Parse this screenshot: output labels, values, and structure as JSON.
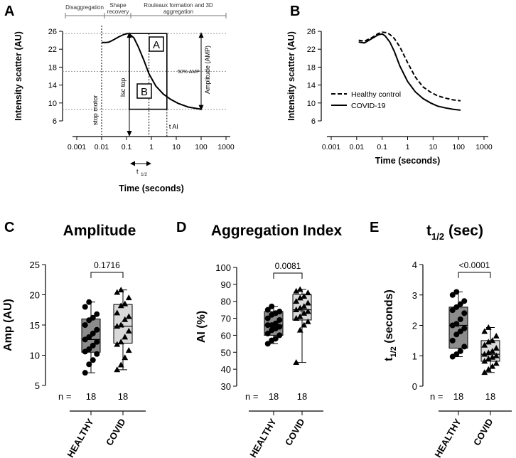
{
  "panels": {
    "A": {
      "letter": "A"
    },
    "B": {
      "letter": "B"
    },
    "C": {
      "letter": "C"
    },
    "D": {
      "letter": "D"
    },
    "E": {
      "letter": "E"
    }
  },
  "chart_data": [
    {
      "id": "A",
      "type": "line",
      "xlabel": "Time (seconds)",
      "ylabel": "Intensity scatter (AU)",
      "xscale": "log",
      "xlim": [
        0.001,
        1000
      ],
      "ylim": [
        6,
        26
      ],
      "xticks": [
        "0.001",
        "0.01",
        "0.1",
        "1",
        "10",
        "100",
        "1000"
      ],
      "yticks": [
        "6",
        "10",
        "14",
        "18",
        "22",
        "26"
      ],
      "phases": [
        "Disaggregation",
        "Shape recovery",
        "Rouleaux formation and 3D aggregation"
      ],
      "annotations": {
        "stop_motor": "stop motor",
        "isc_top": "Isc top",
        "t_ai": "t AI",
        "half_amp": "50% AMP",
        "amplitude": "Amplitude (AMP)",
        "area_a": "A",
        "area_b": "B",
        "t_half_main": "t",
        "t_half_sub": "1/2"
      },
      "series": [
        {
          "name": "curve",
          "x": [
            0.01,
            0.015,
            0.02,
            0.03,
            0.05,
            0.08,
            0.11,
            0.13,
            0.2,
            0.3,
            0.5,
            0.8,
            1.5,
            3,
            6,
            12,
            30,
            100
          ],
          "y": [
            23.5,
            23.5,
            23.6,
            24.1,
            24.8,
            25.3,
            25.5,
            25.4,
            24.5,
            22.5,
            19.5,
            16.5,
            13.8,
            12.0,
            10.8,
            9.9,
            9.1,
            8.6
          ]
        }
      ]
    },
    {
      "id": "B",
      "type": "line",
      "xlabel": "Time (seconds)",
      "ylabel": "Intensity scatter (AU)",
      "xscale": "log",
      "xlim": [
        0.001,
        1000
      ],
      "ylim": [
        6,
        26
      ],
      "xticks": [
        "0.001",
        "0.01",
        "0.1",
        "1",
        "10",
        "100",
        "1000"
      ],
      "yticks": [
        "6",
        "10",
        "14",
        "18",
        "22",
        "26"
      ],
      "legend": [
        "Healthy control",
        "COVID-19"
      ],
      "series": [
        {
          "name": "Healthy control",
          "style": "dashed",
          "x": [
            0.012,
            0.02,
            0.04,
            0.07,
            0.1,
            0.15,
            0.2,
            0.3,
            0.5,
            1,
            2,
            4,
            8,
            15,
            30,
            60,
            120
          ],
          "y": [
            24.0,
            23.8,
            24.6,
            25.5,
            25.8,
            25.7,
            25.3,
            24.4,
            22.5,
            19.0,
            15.8,
            13.6,
            12.4,
            11.6,
            11.1,
            10.7,
            10.5
          ]
        },
        {
          "name": "COVID-19",
          "style": "solid",
          "x": [
            0.012,
            0.02,
            0.04,
            0.07,
            0.1,
            0.13,
            0.2,
            0.3,
            0.5,
            1,
            2,
            4,
            8,
            15,
            30,
            60,
            120
          ],
          "y": [
            23.6,
            23.4,
            24.4,
            25.2,
            25.4,
            25.0,
            23.6,
            21.5,
            18.2,
            14.8,
            12.5,
            11.0,
            10.0,
            9.3,
            8.9,
            8.6,
            8.4
          ]
        }
      ]
    },
    {
      "id": "C",
      "type": "box",
      "title": "Amplitude",
      "ylabel": "Amp (AU)",
      "ylim": [
        5,
        25
      ],
      "yticks": [
        "5",
        "10",
        "15",
        "20",
        "25"
      ],
      "categories": [
        "HEALTHY",
        "COVID"
      ],
      "n_label": "n =",
      "n": [
        "18",
        "18"
      ],
      "p_value": "0.1716",
      "boxes": [
        {
          "min": 7.1,
          "q1": 10.5,
          "median": 12.6,
          "q3": 16.0,
          "max": 18.8,
          "mean": 13.1
        },
        {
          "min": 7.6,
          "q1": 12.0,
          "median": 14.8,
          "q3": 18.4,
          "max": 20.8,
          "mean": 14.9
        }
      ],
      "points": [
        [
          7.1,
          8.5,
          9.2,
          10.2,
          10.6,
          11.0,
          11.6,
          12.2,
          12.6,
          13.0,
          13.6,
          14.2,
          15.0,
          15.8,
          16.2,
          16.8,
          18.0,
          18.8
        ],
        [
          7.6,
          8.4,
          9.6,
          10.8,
          11.8,
          12.2,
          13.0,
          14.0,
          14.8,
          15.0,
          15.9,
          16.4,
          17.0,
          18.2,
          18.5,
          19.5,
          20.4,
          20.8
        ]
      ]
    },
    {
      "id": "D",
      "type": "box",
      "title": "Aggregation Index",
      "ylabel": "AI (%)",
      "ylim": [
        30,
        100
      ],
      "yticks": [
        "30",
        "40",
        "50",
        "60",
        "70",
        "80",
        "90",
        "100"
      ],
      "categories": [
        "HEALTHY",
        "COVID"
      ],
      "n_label": "n =",
      "n": [
        "18",
        "18"
      ],
      "p_value": "0.0081",
      "boxes": [
        {
          "min": 55,
          "q1": 60,
          "median": 66,
          "q3": 74,
          "max": 77,
          "mean": 66.5
        },
        {
          "min": 44,
          "q1": 69,
          "median": 75,
          "q3": 84,
          "max": 87,
          "mean": 74.0
        }
      ],
      "points": [
        [
          55,
          57,
          58,
          60,
          61,
          63,
          64,
          65,
          66,
          66,
          67,
          69,
          70,
          72,
          73,
          74,
          75,
          77
        ],
        [
          44,
          63,
          66,
          68,
          70,
          71,
          73,
          74,
          75,
          76,
          77,
          79,
          80,
          82,
          83,
          85,
          86,
          87
        ]
      ]
    },
    {
      "id": "E",
      "type": "box",
      "title": "t",
      "title_sub": "1/2",
      "title_suffix": " (sec)",
      "ylabel": "t",
      "ylabel_sub": "1/2",
      "ylabel_suffix": " (seconds)",
      "ylim": [
        0,
        4
      ],
      "yticks": [
        "0",
        "1",
        "2",
        "3",
        "4"
      ],
      "categories": [
        "HEALTHY",
        "COVID"
      ],
      "n_label": "n =",
      "n": [
        "18",
        "18"
      ],
      "p_value": "<0.0001",
      "boxes": [
        {
          "min": 0.97,
          "q1": 1.25,
          "median": 2.0,
          "q3": 2.6,
          "max": 3.1,
          "mean": 2.0
        },
        {
          "min": 0.45,
          "q1": 0.82,
          "median": 1.05,
          "q3": 1.5,
          "max": 1.93,
          "mean": 1.1
        }
      ],
      "points": [
        [
          0.97,
          1.05,
          1.15,
          1.3,
          1.5,
          1.7,
          1.8,
          1.9,
          2.0,
          2.05,
          2.2,
          2.4,
          2.5,
          2.6,
          2.7,
          2.8,
          3.0,
          3.1
        ],
        [
          0.45,
          0.55,
          0.65,
          0.75,
          0.82,
          0.9,
          0.95,
          1.0,
          1.05,
          1.1,
          1.15,
          1.25,
          1.35,
          1.45,
          1.5,
          1.65,
          1.8,
          1.93
        ]
      ]
    }
  ]
}
